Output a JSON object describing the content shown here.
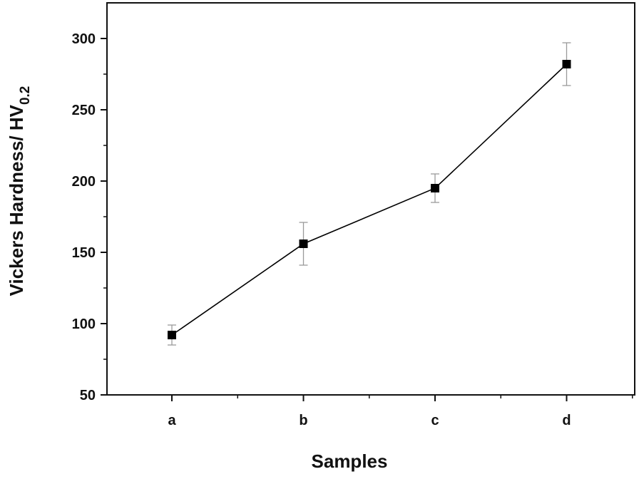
{
  "chart_data": {
    "type": "line",
    "xlabel": "Samples",
    "ylabel": {
      "main": "Vickers Hardness/ HV",
      "subscript": "0.2"
    },
    "categories": [
      "a",
      "b",
      "c",
      "d"
    ],
    "ylim": [
      50,
      300
    ],
    "yticks": [
      50,
      100,
      150,
      200,
      250,
      300
    ],
    "ytick_labels": [
      "50",
      "100",
      "150",
      "200",
      "250",
      "300"
    ],
    "series": [
      {
        "values": [
          92,
          156,
          195,
          282
        ],
        "error": [
          7,
          15,
          10,
          15
        ],
        "marker": "square",
        "color": "#000000"
      }
    ],
    "grid": false,
    "legend": "none",
    "error_bar_color": "#9a9a9a"
  }
}
